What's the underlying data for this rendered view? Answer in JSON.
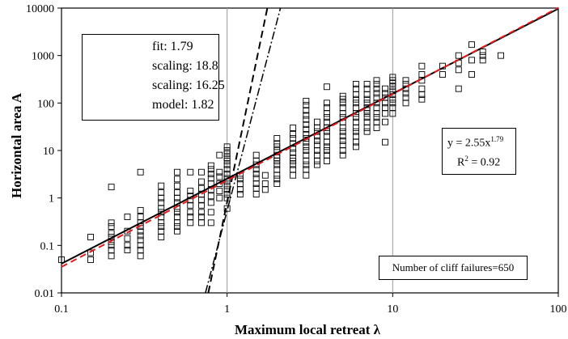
{
  "chart_data": {
    "type": "scatter",
    "x_axis": {
      "label": "Maximum local retreat λ",
      "scale": "log",
      "range": [
        0.1,
        100
      ],
      "tick_labels": [
        "0.1",
        "1",
        "10",
        "100"
      ]
    },
    "y_axis": {
      "label": "Horizontal area A",
      "scale": "log",
      "range": [
        0.01,
        10000
      ],
      "tick_labels": [
        "0.01",
        "0.1",
        "1",
        "10",
        "100",
        "1000",
        "10000"
      ]
    },
    "grid": "vertical lines at x = 1, 10",
    "legend_position": "top-left",
    "series": [
      {
        "name": "fit: 1.79",
        "kind": "line",
        "style": "solid",
        "color": "#000000",
        "coefficient": 2.55,
        "exponent": 1.79
      },
      {
        "name": "scaling: 18.8",
        "kind": "line",
        "style": "dashed",
        "color": "#000000",
        "points": [
          [
            0.77,
            0.01
          ],
          [
            1.75,
            10000
          ]
        ]
      },
      {
        "name": "scaling: 16.25",
        "kind": "line",
        "style": "dash-dot",
        "color": "#000000",
        "points": [
          [
            0.74,
            0.01
          ],
          [
            2.1,
            10000
          ]
        ]
      },
      {
        "name": "model: 1.82",
        "kind": "line",
        "style": "dashed",
        "color": "#e41a1c",
        "coefficient": 2.33,
        "exponent": 1.82
      }
    ],
    "points": [
      [
        0.1,
        0.05
      ],
      [
        0.15,
        0.05
      ],
      [
        0.15,
        0.07
      ],
      [
        0.15,
        0.15
      ],
      [
        0.2,
        0.06
      ],
      [
        0.2,
        0.08
      ],
      [
        0.2,
        0.1
      ],
      [
        0.2,
        0.12
      ],
      [
        0.2,
        0.15
      ],
      [
        0.2,
        0.18
      ],
      [
        0.2,
        0.25
      ],
      [
        0.2,
        0.3
      ],
      [
        0.2,
        1.7
      ],
      [
        0.25,
        0.08
      ],
      [
        0.25,
        0.1
      ],
      [
        0.25,
        0.14
      ],
      [
        0.25,
        0.2
      ],
      [
        0.25,
        0.4
      ],
      [
        0.3,
        0.06
      ],
      [
        0.3,
        0.08
      ],
      [
        0.3,
        0.1
      ],
      [
        0.3,
        0.13
      ],
      [
        0.3,
        0.16
      ],
      [
        0.3,
        0.2
      ],
      [
        0.3,
        0.25
      ],
      [
        0.3,
        0.3
      ],
      [
        0.3,
        0.4
      ],
      [
        0.3,
        0.55
      ],
      [
        0.3,
        3.5
      ],
      [
        0.4,
        0.15
      ],
      [
        0.4,
        0.2
      ],
      [
        0.4,
        0.25
      ],
      [
        0.4,
        0.3
      ],
      [
        0.4,
        0.4
      ],
      [
        0.4,
        0.5
      ],
      [
        0.4,
        0.6
      ],
      [
        0.4,
        0.8
      ],
      [
        0.4,
        1
      ],
      [
        0.4,
        1.3
      ],
      [
        0.4,
        1.8
      ],
      [
        0.5,
        0.2
      ],
      [
        0.5,
        0.25
      ],
      [
        0.5,
        0.3
      ],
      [
        0.5,
        0.4
      ],
      [
        0.5,
        0.5
      ],
      [
        0.5,
        0.6
      ],
      [
        0.5,
        0.8
      ],
      [
        0.5,
        1
      ],
      [
        0.5,
        1.3
      ],
      [
        0.5,
        1.8
      ],
      [
        0.5,
        2.5
      ],
      [
        0.5,
        3.5
      ],
      [
        0.6,
        0.3
      ],
      [
        0.6,
        0.4
      ],
      [
        0.6,
        0.5
      ],
      [
        0.6,
        0.7
      ],
      [
        0.6,
        0.9
      ],
      [
        0.6,
        1.1
      ],
      [
        0.6,
        1.4
      ],
      [
        0.6,
        3.5
      ],
      [
        0.7,
        0.3
      ],
      [
        0.7,
        0.4
      ],
      [
        0.7,
        0.5
      ],
      [
        0.7,
        0.7
      ],
      [
        0.7,
        0.9
      ],
      [
        0.7,
        1.2
      ],
      [
        0.7,
        1.6
      ],
      [
        0.7,
        2.2
      ],
      [
        0.7,
        3.5
      ],
      [
        0.8,
        0.3
      ],
      [
        0.8,
        0.5
      ],
      [
        0.8,
        0.8
      ],
      [
        0.8,
        1.1
      ],
      [
        0.8,
        1.5
      ],
      [
        0.8,
        2
      ],
      [
        0.8,
        2.6
      ],
      [
        0.8,
        3.2
      ],
      [
        0.8,
        4
      ],
      [
        0.8,
        4.8
      ],
      [
        0.9,
        1
      ],
      [
        0.9,
        1.4
      ],
      [
        0.9,
        2
      ],
      [
        0.9,
        2.8
      ],
      [
        0.9,
        3.5
      ],
      [
        0.9,
        8
      ],
      [
        1,
        0.6
      ],
      [
        1,
        1
      ],
      [
        1,
        1.2
      ],
      [
        1,
        1.5
      ],
      [
        1,
        1.8
      ],
      [
        1,
        2.2
      ],
      [
        1,
        2.6
      ],
      [
        1,
        3.2
      ],
      [
        1,
        4
      ],
      [
        1,
        5
      ],
      [
        1,
        6
      ],
      [
        1,
        7
      ],
      [
        1,
        8.5
      ],
      [
        1,
        10
      ],
      [
        1,
        12
      ],
      [
        1.2,
        1.2
      ],
      [
        1.2,
        1.5
      ],
      [
        1.2,
        2
      ],
      [
        1.2,
        2.5
      ],
      [
        1.2,
        3
      ],
      [
        1.5,
        1.2
      ],
      [
        1.5,
        1.6
      ],
      [
        1.5,
        2
      ],
      [
        1.5,
        2.6
      ],
      [
        1.5,
        3.2
      ],
      [
        1.5,
        4
      ],
      [
        1.5,
        5
      ],
      [
        1.5,
        6
      ],
      [
        1.5,
        8
      ],
      [
        1.7,
        1.5
      ],
      [
        1.7,
        2
      ],
      [
        1.7,
        3
      ],
      [
        2,
        2
      ],
      [
        2,
        2.5
      ],
      [
        2,
        3
      ],
      [
        2,
        4
      ],
      [
        2,
        5
      ],
      [
        2,
        6
      ],
      [
        2,
        7
      ],
      [
        2,
        8
      ],
      [
        2,
        10
      ],
      [
        2,
        12
      ],
      [
        2,
        14
      ],
      [
        2,
        18
      ],
      [
        2.5,
        3
      ],
      [
        2.5,
        4
      ],
      [
        2.5,
        5
      ],
      [
        2.5,
        6
      ],
      [
        2.5,
        7
      ],
      [
        2.5,
        9
      ],
      [
        2.5,
        11
      ],
      [
        2.5,
        14
      ],
      [
        2.5,
        18
      ],
      [
        2.5,
        22
      ],
      [
        2.5,
        30
      ],
      [
        3,
        3
      ],
      [
        3,
        4
      ],
      [
        3,
        5
      ],
      [
        3,
        6
      ],
      [
        3,
        8
      ],
      [
        3,
        10
      ],
      [
        3,
        12
      ],
      [
        3,
        15
      ],
      [
        3,
        18
      ],
      [
        3,
        22
      ],
      [
        3,
        28
      ],
      [
        3,
        35
      ],
      [
        3,
        45
      ],
      [
        3,
        55
      ],
      [
        3,
        70
      ],
      [
        3,
        90
      ],
      [
        3,
        110
      ],
      [
        3.5,
        5
      ],
      [
        3.5,
        6
      ],
      [
        3.5,
        8
      ],
      [
        3.5,
        10
      ],
      [
        3.5,
        13
      ],
      [
        3.5,
        16
      ],
      [
        3.5,
        20
      ],
      [
        3.5,
        25
      ],
      [
        3.5,
        30
      ],
      [
        3.5,
        40
      ],
      [
        4,
        6
      ],
      [
        4,
        8
      ],
      [
        4,
        10
      ],
      [
        4,
        12
      ],
      [
        4,
        15
      ],
      [
        4,
        20
      ],
      [
        4,
        25
      ],
      [
        4,
        30
      ],
      [
        4,
        40
      ],
      [
        4,
        50
      ],
      [
        4,
        60
      ],
      [
        4,
        80
      ],
      [
        4,
        100
      ],
      [
        4,
        220
      ],
      [
        5,
        8
      ],
      [
        5,
        10
      ],
      [
        5,
        13
      ],
      [
        5,
        16
      ],
      [
        5,
        20
      ],
      [
        5,
        25
      ],
      [
        5,
        30
      ],
      [
        5,
        40
      ],
      [
        5,
        50
      ],
      [
        5,
        60
      ],
      [
        5,
        80
      ],
      [
        5,
        100
      ],
      [
        5,
        120
      ],
      [
        5,
        140
      ],
      [
        6,
        12
      ],
      [
        6,
        15
      ],
      [
        6,
        20
      ],
      [
        6,
        25
      ],
      [
        6,
        30
      ],
      [
        6,
        40
      ],
      [
        6,
        50
      ],
      [
        6,
        60
      ],
      [
        6,
        80
      ],
      [
        6,
        100
      ],
      [
        6,
        120
      ],
      [
        6,
        150
      ],
      [
        6,
        200
      ],
      [
        6,
        250
      ],
      [
        7,
        25
      ],
      [
        7,
        30
      ],
      [
        7,
        40
      ],
      [
        7,
        50
      ],
      [
        7,
        60
      ],
      [
        7,
        70
      ],
      [
        7,
        80
      ],
      [
        7,
        100
      ],
      [
        7,
        120
      ],
      [
        7,
        150
      ],
      [
        7,
        200
      ],
      [
        7,
        250
      ],
      [
        8,
        30
      ],
      [
        8,
        40
      ],
      [
        8,
        50
      ],
      [
        8,
        60
      ],
      [
        8,
        80
      ],
      [
        8,
        100
      ],
      [
        8,
        130
      ],
      [
        8,
        160
      ],
      [
        8,
        200
      ],
      [
        8,
        250
      ],
      [
        8,
        300
      ],
      [
        9,
        15
      ],
      [
        9,
        40
      ],
      [
        9,
        60
      ],
      [
        9,
        80
      ],
      [
        9,
        100
      ],
      [
        9,
        130
      ],
      [
        9,
        160
      ],
      [
        9,
        200
      ],
      [
        10,
        60
      ],
      [
        10,
        80
      ],
      [
        10,
        100
      ],
      [
        10,
        120
      ],
      [
        10,
        150
      ],
      [
        10,
        180
      ],
      [
        10,
        220
      ],
      [
        10,
        260
      ],
      [
        10,
        300
      ],
      [
        10,
        350
      ],
      [
        12,
        100
      ],
      [
        12,
        130
      ],
      [
        12,
        160
      ],
      [
        12,
        200
      ],
      [
        12,
        250
      ],
      [
        12,
        300
      ],
      [
        15,
        120
      ],
      [
        15,
        150
      ],
      [
        15,
        200
      ],
      [
        15,
        300
      ],
      [
        15,
        400
      ],
      [
        15,
        600
      ],
      [
        20,
        400
      ],
      [
        20,
        600
      ],
      [
        25,
        200
      ],
      [
        25,
        500
      ],
      [
        25,
        700
      ],
      [
        25,
        1000
      ],
      [
        30,
        400
      ],
      [
        30,
        800
      ],
      [
        30,
        1700
      ],
      [
        35,
        1000
      ],
      [
        35,
        1200
      ],
      [
        35,
        800
      ],
      [
        45,
        1000
      ]
    ],
    "annotations": [
      {
        "text_prefix": "y = 2.55x",
        "superscript": "1.79"
      },
      {
        "text_prefix": "R",
        "superscript": "2",
        "text_suffix": " = 0.92"
      },
      {
        "text": "Number of cliff failures=650"
      }
    ]
  }
}
